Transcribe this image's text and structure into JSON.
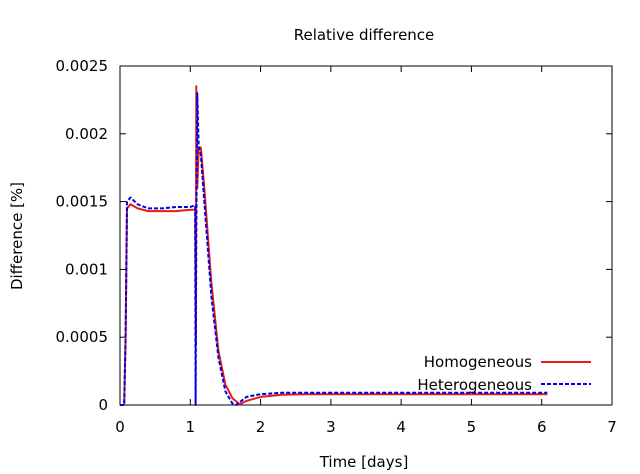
{
  "chart_data": {
    "type": "line",
    "title": "Relative difference",
    "xlabel": "Time [days]",
    "ylabel": "Difference [%]",
    "xlim": [
      0,
      7
    ],
    "ylim": [
      0,
      0.0025
    ],
    "x_ticks": [
      0,
      1,
      2,
      3,
      4,
      5,
      6,
      7
    ],
    "x_tick_labels": [
      "0",
      "1",
      "2",
      "3",
      "4",
      "5",
      "6",
      "7"
    ],
    "y_ticks": [
      0,
      0.0005,
      0.001,
      0.0015,
      0.002,
      0.0025
    ],
    "y_tick_labels": [
      "0",
      "0.0005",
      "0.001",
      "0.0015",
      "0.002",
      "0.0025"
    ],
    "grid": false,
    "legend_position": "bottom-right",
    "series": [
      {
        "name": "Homogeneous",
        "color": "#e41a1c",
        "style": "solid",
        "x": [
          0,
          0.06,
          0.08,
          0.1,
          0.15,
          0.25,
          0.4,
          0.6,
          0.8,
          1.0,
          1.05,
          1.07,
          1.08,
          1.085,
          1.1,
          1.12,
          1.15,
          1.2,
          1.3,
          1.4,
          1.5,
          1.6,
          1.7,
          1.8,
          2.0,
          2.3,
          2.6,
          3.0,
          4.0,
          5.0,
          6.0,
          6.08
        ],
        "y": [
          0,
          0,
          0.0005,
          0.00145,
          0.00148,
          0.00145,
          0.00143,
          0.00143,
          0.00143,
          0.00144,
          0.00144,
          0.00144,
          0.00044,
          0.00235,
          0.0016,
          0.0019,
          0.0019,
          0.0016,
          0.0009,
          0.0004,
          0.00015,
          5e-05,
          5e-06,
          3e-05,
          6e-05,
          7.5e-05,
          8e-05,
          8e-05,
          8e-05,
          8e-05,
          8e-05,
          8e-05
        ]
      },
      {
        "name": "Heterogeneous",
        "color": "#0000e6",
        "style": "dashed",
        "x": [
          0,
          0.06,
          0.08,
          0.1,
          0.15,
          0.25,
          0.4,
          0.6,
          0.8,
          1.0,
          1.05,
          1.07,
          1.075,
          1.085,
          1.1,
          1.12,
          1.15,
          1.2,
          1.3,
          1.4,
          1.5,
          1.6,
          1.65,
          1.7,
          1.8,
          2.0,
          2.3,
          2.6,
          3.0,
          4.0,
          5.0,
          6.0,
          6.08
        ],
        "y": [
          0,
          0,
          0.0005,
          0.0015,
          0.00153,
          0.00148,
          0.00145,
          0.00145,
          0.00146,
          0.00146,
          0.00147,
          0.00147,
          0.0,
          0.0013,
          0.0023,
          0.0019,
          0.00185,
          0.0015,
          0.0008,
          0.00035,
          0.0001,
          1e-05,
          0.0,
          2e-05,
          6e-05,
          8e-05,
          9e-05,
          9e-05,
          9e-05,
          9e-05,
          9e-05,
          9e-05,
          9e-05
        ]
      }
    ]
  }
}
